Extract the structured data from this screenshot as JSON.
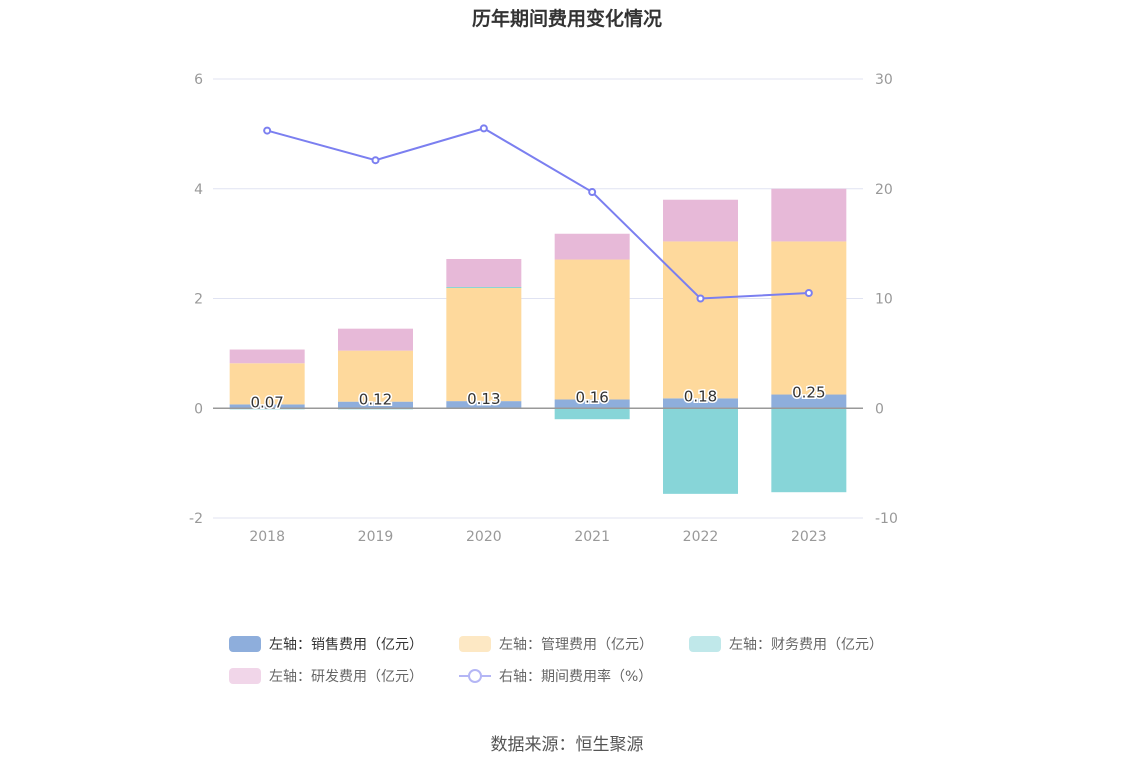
{
  "title": "历年期间费用变化情况",
  "source": "数据来源：恒生聚源",
  "chart_data": {
    "type": "bar",
    "stacked": true,
    "categories": [
      "2018",
      "2019",
      "2020",
      "2021",
      "2022",
      "2023"
    ],
    "left_axis": {
      "ylim": [
        -2,
        6
      ],
      "ticks": [
        "-2",
        "0",
        "2",
        "4",
        "6"
      ]
    },
    "right_axis": {
      "ylim": [
        -10,
        30
      ],
      "ticks": [
        "-10",
        "0",
        "10",
        "20",
        "30"
      ]
    },
    "grid": true,
    "legend_position": "bottom",
    "series": [
      {
        "name": "左轴：销售费用（亿元）",
        "axis": "left",
        "type": "bar",
        "color": "#8eaedc",
        "values": [
          0.07,
          0.12,
          0.13,
          0.16,
          0.18,
          0.25
        ],
        "labels": [
          "0.07",
          "0.12",
          "0.13",
          "0.16",
          "0.18",
          "0.25"
        ]
      },
      {
        "name": "左轴：管理费用（亿元）",
        "axis": "left",
        "type": "bar",
        "color": "#fed99c",
        "values": [
          0.75,
          0.93,
          2.07,
          2.55,
          2.86,
          2.79
        ]
      },
      {
        "name": "左轴：财务费用（亿元）",
        "axis": "left",
        "type": "bar",
        "color": "#87d5d8",
        "values": [
          -0.02,
          -0.02,
          0.01,
          -0.2,
          -1.56,
          -1.53
        ]
      },
      {
        "name": "左轴：研发费用（亿元）",
        "axis": "left",
        "type": "bar",
        "color": "#e7b9d8",
        "values": [
          0.25,
          0.4,
          0.51,
          0.47,
          0.76,
          0.96
        ]
      },
      {
        "name": "右轴：期间费用率（%）",
        "axis": "right",
        "type": "line",
        "color": "#7b7ff0",
        "values": [
          25.3,
          22.6,
          25.5,
          19.7,
          10.0,
          10.5
        ]
      }
    ]
  }
}
